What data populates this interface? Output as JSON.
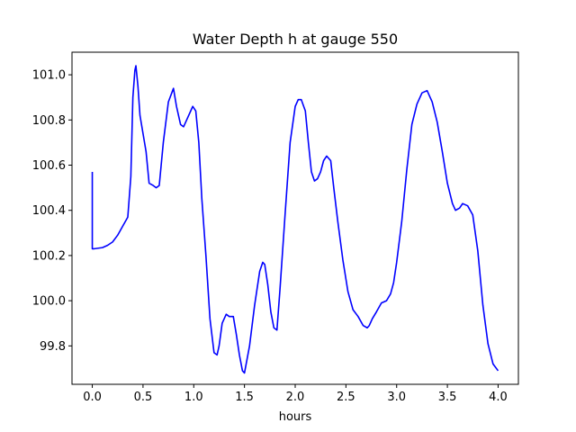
{
  "chart_data": {
    "type": "line",
    "title": "Water Depth h at gauge 550",
    "xlabel": "hours",
    "ylabel": "",
    "xlim": [
      -0.2,
      4.2
    ],
    "ylim": [
      99.63,
      101.1
    ],
    "xticks": [
      0.0,
      0.5,
      1.0,
      1.5,
      2.0,
      2.5,
      3.0,
      3.5,
      4.0
    ],
    "xtick_labels": [
      "0.0",
      "0.5",
      "1.0",
      "1.5",
      "2.0",
      "2.5",
      "3.0",
      "3.5",
      "4.0"
    ],
    "yticks": [
      99.8,
      100.0,
      100.2,
      100.4,
      100.6,
      100.8,
      101.0
    ],
    "ytick_labels": [
      "99.8",
      "100.0",
      "100.2",
      "100.4",
      "100.6",
      "100.8",
      "101.0"
    ],
    "grid": false,
    "series": [
      {
        "color": "#0000ff",
        "x": [
          0.0,
          0.0,
          0.02,
          0.1,
          0.15,
          0.2,
          0.25,
          0.3,
          0.35,
          0.38,
          0.4,
          0.42,
          0.43,
          0.45,
          0.47,
          0.5,
          0.53,
          0.56,
          0.6,
          0.63,
          0.66,
          0.7,
          0.75,
          0.8,
          0.83,
          0.87,
          0.9,
          0.94,
          0.99,
          1.02,
          1.05,
          1.08,
          1.12,
          1.16,
          1.2,
          1.23,
          1.25,
          1.28,
          1.32,
          1.35,
          1.39,
          1.42,
          1.45,
          1.48,
          1.5,
          1.55,
          1.6,
          1.65,
          1.68,
          1.7,
          1.73,
          1.76,
          1.79,
          1.82,
          1.85,
          1.9,
          1.95,
          2.0,
          2.03,
          2.06,
          2.1,
          2.13,
          2.16,
          2.19,
          2.22,
          2.25,
          2.28,
          2.31,
          2.35,
          2.38,
          2.42,
          2.47,
          2.52,
          2.57,
          2.62,
          2.67,
          2.71,
          2.73,
          2.76,
          2.8,
          2.85,
          2.9,
          2.94,
          2.97,
          3.0,
          3.05,
          3.1,
          3.15,
          3.2,
          3.25,
          3.3,
          3.35,
          3.4,
          3.45,
          3.5,
          3.55,
          3.58,
          3.62,
          3.65,
          3.7,
          3.75,
          3.8,
          3.85,
          3.9,
          3.95,
          4.0
        ],
        "y": [
          100.57,
          100.23,
          100.23,
          100.235,
          100.245,
          100.26,
          100.29,
          100.33,
          100.37,
          100.55,
          100.9,
          101.02,
          101.04,
          100.95,
          100.82,
          100.74,
          100.66,
          100.52,
          100.51,
          100.5,
          100.51,
          100.7,
          100.88,
          100.94,
          100.86,
          100.78,
          100.77,
          100.81,
          100.86,
          100.84,
          100.7,
          100.45,
          100.2,
          99.92,
          99.77,
          99.76,
          99.8,
          99.9,
          99.94,
          99.93,
          99.93,
          99.85,
          99.76,
          99.69,
          99.68,
          99.8,
          99.98,
          100.13,
          100.17,
          100.16,
          100.07,
          99.95,
          99.88,
          99.87,
          100.05,
          100.38,
          100.7,
          100.86,
          100.89,
          100.89,
          100.84,
          100.7,
          100.57,
          100.53,
          100.54,
          100.57,
          100.62,
          100.64,
          100.62,
          100.5,
          100.35,
          100.18,
          100.04,
          99.96,
          99.93,
          99.89,
          99.88,
          99.89,
          99.92,
          99.95,
          99.99,
          100.0,
          100.03,
          100.08,
          100.17,
          100.35,
          100.58,
          100.78,
          100.87,
          100.92,
          100.93,
          100.88,
          100.79,
          100.66,
          100.52,
          100.43,
          100.4,
          100.41,
          100.43,
          100.42,
          100.38,
          100.22,
          99.98,
          99.81,
          99.72,
          99.69
        ]
      }
    ]
  }
}
